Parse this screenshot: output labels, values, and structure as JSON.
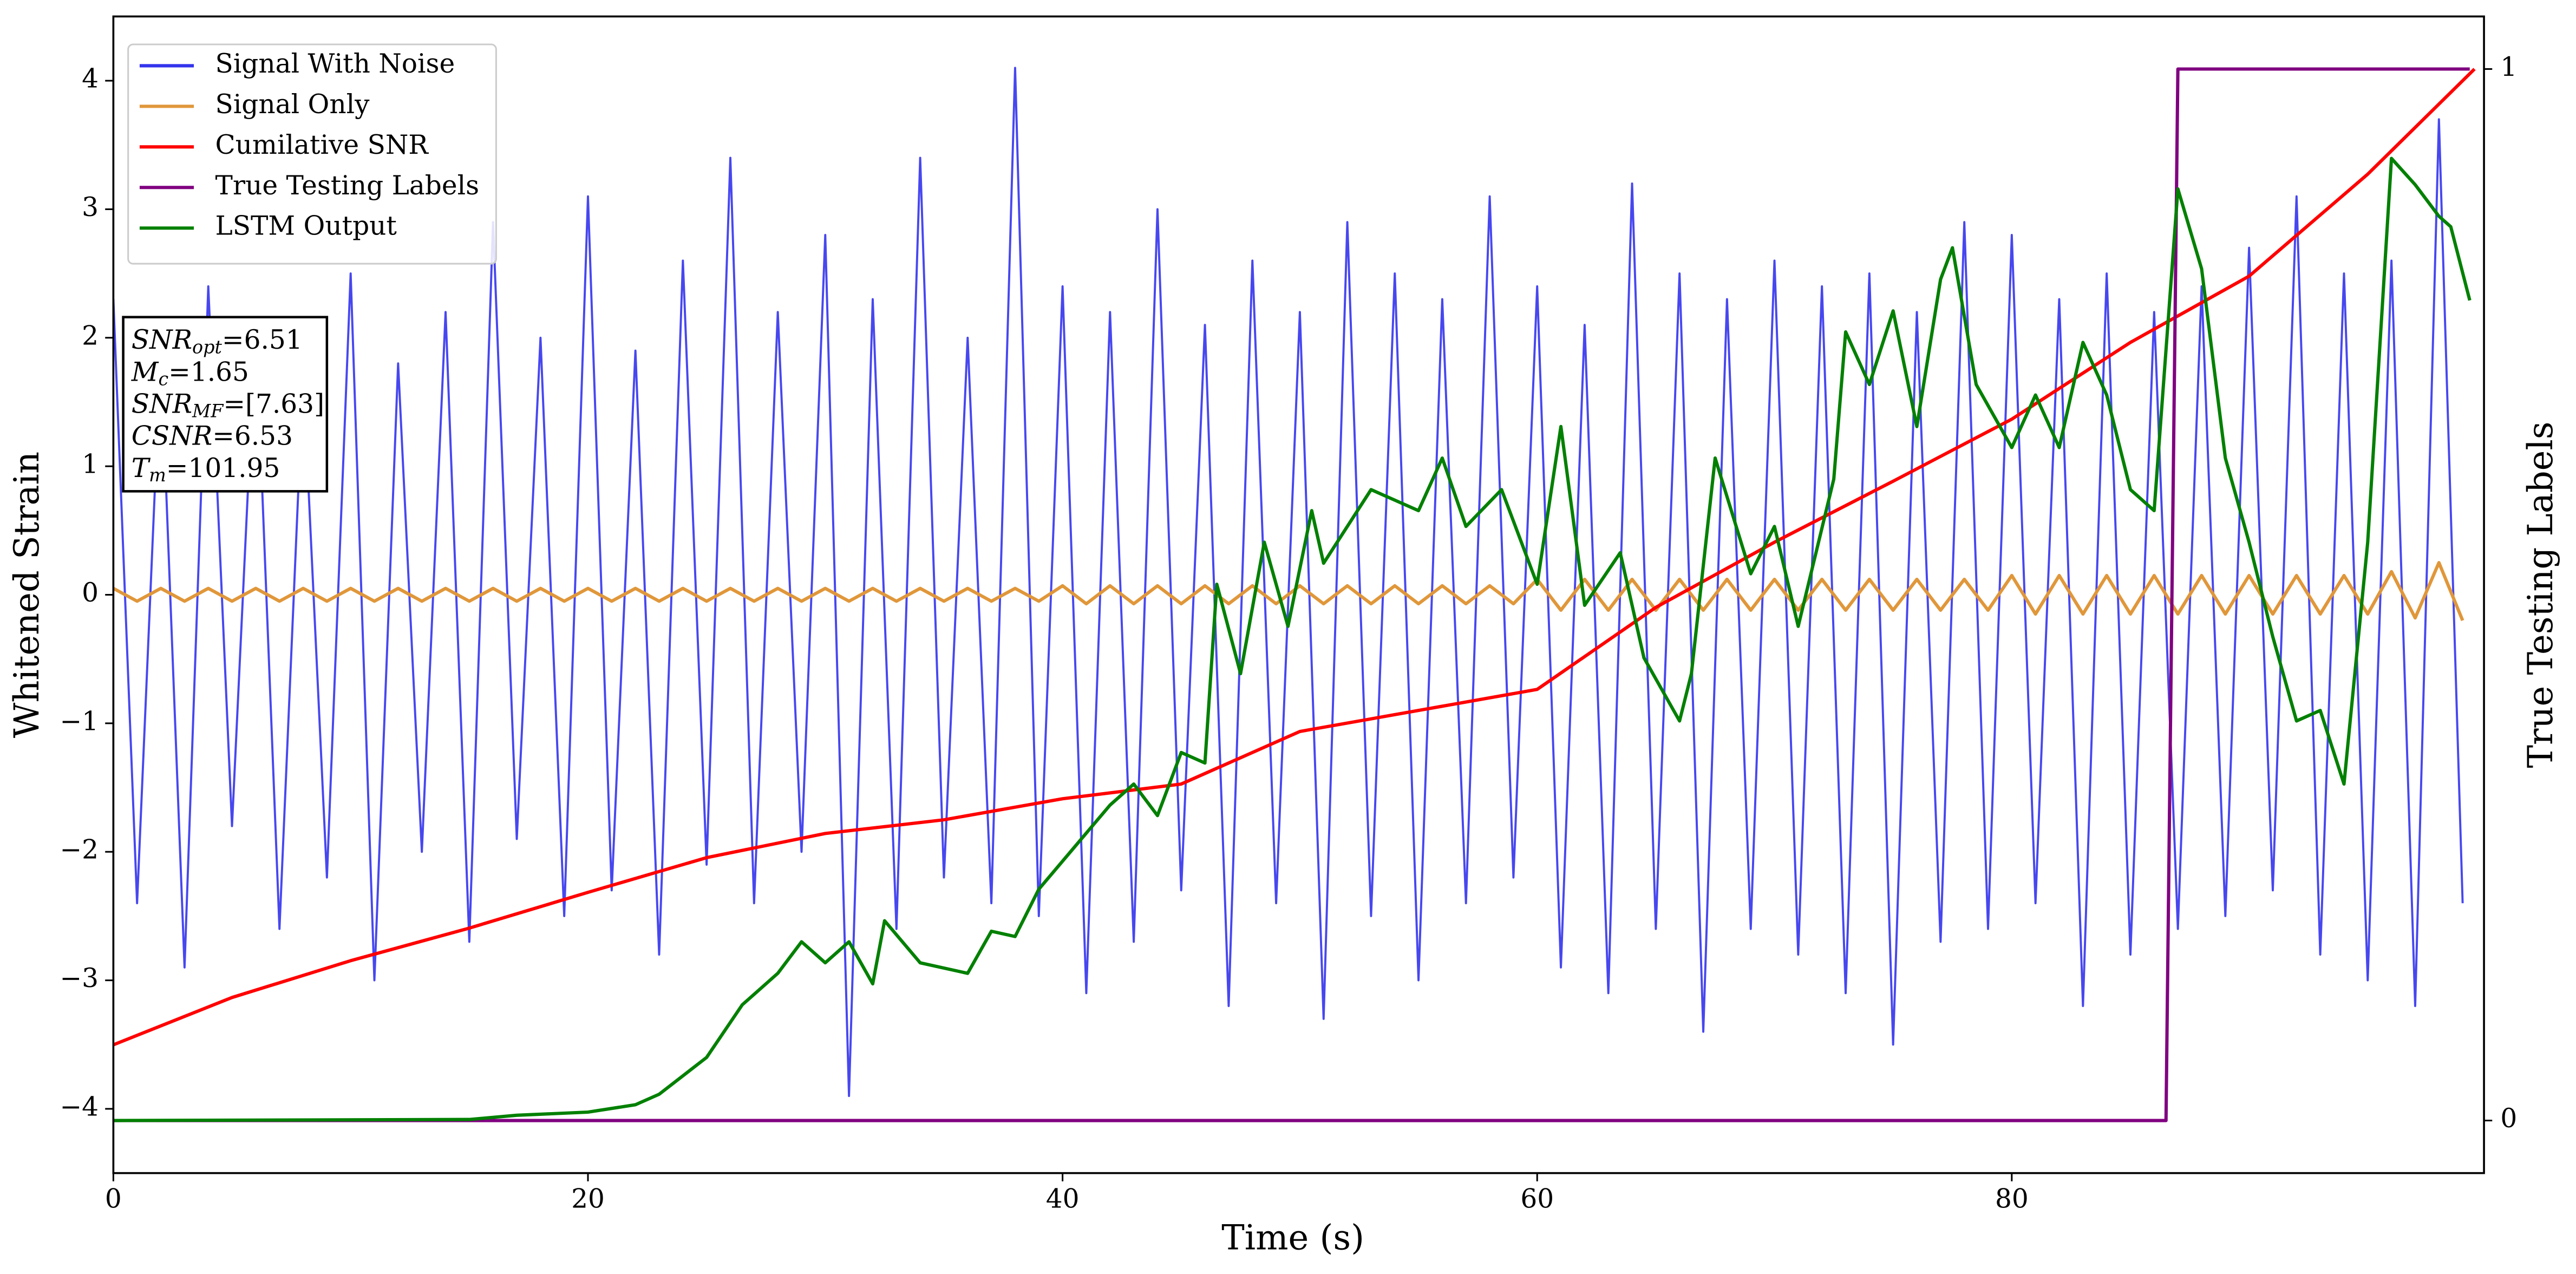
{
  "chart_data": {
    "type": "line",
    "xlabel": "Time (s)",
    "ylabel": "Whitened Strain",
    "y2label": "True Testing Labels",
    "xlim": [
      0,
      99.9
    ],
    "ylim": [
      -4.5,
      4.5
    ],
    "y2lim": [
      -0.05,
      1.05
    ],
    "xticks": [
      0,
      20,
      40,
      60,
      80
    ],
    "yticks": [
      {
        "value": -4,
        "label": "−4"
      },
      {
        "value": -3,
        "label": "−3"
      },
      {
        "value": -2,
        "label": "−2"
      },
      {
        "value": -1,
        "label": "−1"
      },
      0,
      1,
      2,
      3,
      4
    ],
    "y2ticks": [
      0,
      1
    ],
    "legend": "upper left",
    "annotations": [
      {
        "symbol": "SNR",
        "subscript": "opt",
        "text": "=6.51"
      },
      {
        "symbol": "M",
        "subscript": "c",
        "text": "=1.65"
      },
      {
        "symbol": "SNR",
        "subscript": "MF",
        "text": "=[7.63]"
      },
      {
        "symbol": "CSNR",
        "text": "=6.53"
      },
      {
        "symbol": "T",
        "subscript": "m",
        "text": "=101.95"
      }
    ],
    "series": [
      {
        "name": "Signal With Noise",
        "color": "#3333ee",
        "x": [
          0,
          1,
          2,
          3,
          4,
          5,
          6,
          7,
          8,
          9,
          10,
          11,
          12,
          13,
          14,
          15,
          16,
          17,
          18,
          19,
          20,
          21,
          22,
          23,
          24,
          25,
          26,
          27,
          28,
          29,
          30,
          31,
          32,
          33,
          34,
          35,
          36,
          37,
          38,
          39,
          40,
          41,
          42,
          43,
          44,
          45,
          46,
          47,
          48,
          49,
          50,
          51,
          52,
          53,
          54,
          55,
          56,
          57,
          58,
          59,
          60,
          61,
          62,
          63,
          64,
          65,
          66,
          67,
          68,
          69,
          70,
          71,
          72,
          73,
          74,
          75,
          76,
          77,
          78,
          79,
          80,
          81,
          82,
          83,
          84,
          85,
          86,
          87,
          88,
          89,
          90,
          91,
          92,
          93,
          94,
          95,
          96,
          97,
          98,
          99
        ],
        "values": [
          2.3,
          -2.4,
          1.9,
          -2.9,
          2.4,
          -1.8,
          2.1,
          -2.6,
          1.7,
          -2.2,
          2.5,
          -3.0,
          1.8,
          -2.0,
          2.2,
          -2.7,
          2.9,
          -1.9,
          2.0,
          -2.5,
          3.1,
          -2.3,
          1.9,
          -2.8,
          2.6,
          -2.1,
          3.4,
          -2.4,
          2.2,
          -2.0,
          2.8,
          -3.9,
          2.3,
          -2.6,
          3.4,
          -2.2,
          2.0,
          -2.4,
          4.1,
          -2.5,
          2.4,
          -3.1,
          2.2,
          -2.7,
          3.0,
          -2.3,
          2.1,
          -3.2,
          2.6,
          -2.4,
          2.2,
          -3.3,
          2.9,
          -2.5,
          2.5,
          -3.0,
          2.3,
          -2.4,
          3.1,
          -2.2,
          2.4,
          -2.9,
          2.1,
          -3.1,
          3.2,
          -2.6,
          2.5,
          -3.4,
          2.3,
          -2.6,
          2.6,
          -2.8,
          2.4,
          -3.1,
          2.5,
          -3.5,
          2.2,
          -2.7,
          2.9,
          -2.6,
          2.8,
          -2.4,
          2.3,
          -3.2,
          2.5,
          -2.8,
          2.2,
          -2.6,
          2.4,
          -2.5,
          2.7,
          -2.3,
          3.1,
          -2.8,
          2.5,
          -3.0,
          2.6,
          -3.2,
          3.7,
          -2.4
        ]
      },
      {
        "name": "Signal Only",
        "color": "#e0973a",
        "x": [
          0,
          1,
          2,
          3,
          4,
          5,
          6,
          7,
          8,
          9,
          10,
          11,
          12,
          13,
          14,
          15,
          16,
          17,
          18,
          19,
          20,
          21,
          22,
          23,
          24,
          25,
          26,
          27,
          28,
          29,
          30,
          31,
          32,
          33,
          34,
          35,
          36,
          37,
          38,
          39,
          40,
          41,
          42,
          43,
          44,
          45,
          46,
          47,
          48,
          49,
          50,
          51,
          52,
          53,
          54,
          55,
          56,
          57,
          58,
          59,
          60,
          61,
          62,
          63,
          64,
          65,
          66,
          67,
          68,
          69,
          70,
          71,
          72,
          73,
          74,
          75,
          76,
          77,
          78,
          79,
          80,
          81,
          82,
          83,
          84,
          85,
          86,
          87,
          88,
          89,
          90,
          91,
          92,
          93,
          94,
          95,
          96,
          97,
          98,
          99
        ],
        "values": [
          0.05,
          -0.05,
          0.05,
          -0.05,
          0.05,
          -0.05,
          0.05,
          -0.05,
          0.05,
          -0.05,
          0.05,
          -0.05,
          0.05,
          -0.05,
          0.05,
          -0.05,
          0.05,
          -0.05,
          0.05,
          -0.05,
          0.05,
          -0.05,
          0.05,
          -0.05,
          0.05,
          -0.05,
          0.05,
          -0.05,
          0.05,
          -0.05,
          0.05,
          -0.05,
          0.05,
          -0.05,
          0.05,
          -0.05,
          0.05,
          -0.05,
          0.05,
          -0.05,
          0.07,
          -0.07,
          0.07,
          -0.07,
          0.07,
          -0.07,
          0.07,
          -0.07,
          0.07,
          -0.07,
          0.07,
          -0.07,
          0.07,
          -0.07,
          0.07,
          -0.07,
          0.07,
          -0.07,
          0.07,
          -0.07,
          0.12,
          -0.12,
          0.12,
          -0.12,
          0.12,
          -0.12,
          0.12,
          -0.12,
          0.12,
          -0.12,
          0.12,
          -0.12,
          0.12,
          -0.12,
          0.12,
          -0.12,
          0.12,
          -0.12,
          0.12,
          -0.12,
          0.15,
          -0.15,
          0.15,
          -0.15,
          0.15,
          -0.15,
          0.15,
          -0.15,
          0.15,
          -0.15,
          0.15,
          -0.15,
          0.15,
          -0.15,
          0.15,
          -0.15,
          0.18,
          -0.18,
          0.25,
          -0.2
        ]
      },
      {
        "name": "Cumilative SNR",
        "color": "#ff0000",
        "axis": "y2",
        "x": [
          0,
          5,
          10,
          15,
          20,
          25,
          30,
          35,
          40,
          45,
          50,
          55,
          60,
          65,
          70,
          75,
          80,
          85,
          90,
          95,
          99.5
        ],
        "values": [
          0.072,
          0.117,
          0.152,
          0.183,
          0.217,
          0.25,
          0.273,
          0.286,
          0.306,
          0.32,
          0.37,
          0.39,
          0.41,
          0.488,
          0.55,
          0.608,
          0.667,
          0.74,
          0.803,
          0.9,
          1.0
        ]
      },
      {
        "name": "True Testing Labels",
        "color": "#800080",
        "axis": "y2",
        "x": [
          0,
          86.5,
          87,
          99.3
        ],
        "values": [
          0,
          0,
          1,
          1
        ]
      },
      {
        "name": "LSTM Output",
        "color": "#008000",
        "axis": "y2",
        "x": [
          0,
          15,
          17,
          20,
          22,
          23,
          25,
          26.5,
          28,
          29,
          30,
          31,
          32,
          32.5,
          34,
          36,
          37,
          38,
          39,
          40.5,
          42,
          43,
          44,
          45,
          46,
          46.5,
          47.5,
          48.5,
          49.5,
          50.5,
          51,
          53,
          55,
          56,
          57,
          58.5,
          60,
          61,
          62,
          63.5,
          64.5,
          66,
          66.5,
          67.5,
          69,
          70,
          71,
          72.5,
          73,
          74,
          75,
          76,
          77,
          77.5,
          78.5,
          80,
          81,
          82,
          83,
          84,
          85,
          86,
          87,
          88,
          89,
          90,
          91,
          92,
          93,
          94,
          95,
          96,
          97,
          98,
          98.5,
          99.3
        ],
        "values": [
          0,
          0.001,
          0.005,
          0.008,
          0.015,
          0.025,
          0.06,
          0.11,
          0.14,
          0.17,
          0.15,
          0.17,
          0.13,
          0.19,
          0.15,
          0.14,
          0.18,
          0.175,
          0.22,
          0.26,
          0.3,
          0.32,
          0.29,
          0.35,
          0.34,
          0.51,
          0.425,
          0.55,
          0.47,
          0.58,
          0.53,
          0.6,
          0.58,
          0.63,
          0.565,
          0.6,
          0.51,
          0.66,
          0.49,
          0.54,
          0.44,
          0.38,
          0.425,
          0.63,
          0.52,
          0.565,
          0.47,
          0.61,
          0.75,
          0.7,
          0.77,
          0.66,
          0.8,
          0.83,
          0.7,
          0.64,
          0.69,
          0.64,
          0.74,
          0.69,
          0.6,
          0.58,
          0.886,
          0.81,
          0.63,
          0.55,
          0.46,
          0.38,
          0.39,
          0.32,
          0.55,
          0.915,
          0.89,
          0.86,
          0.85,
          0.78
        ]
      }
    ]
  }
}
